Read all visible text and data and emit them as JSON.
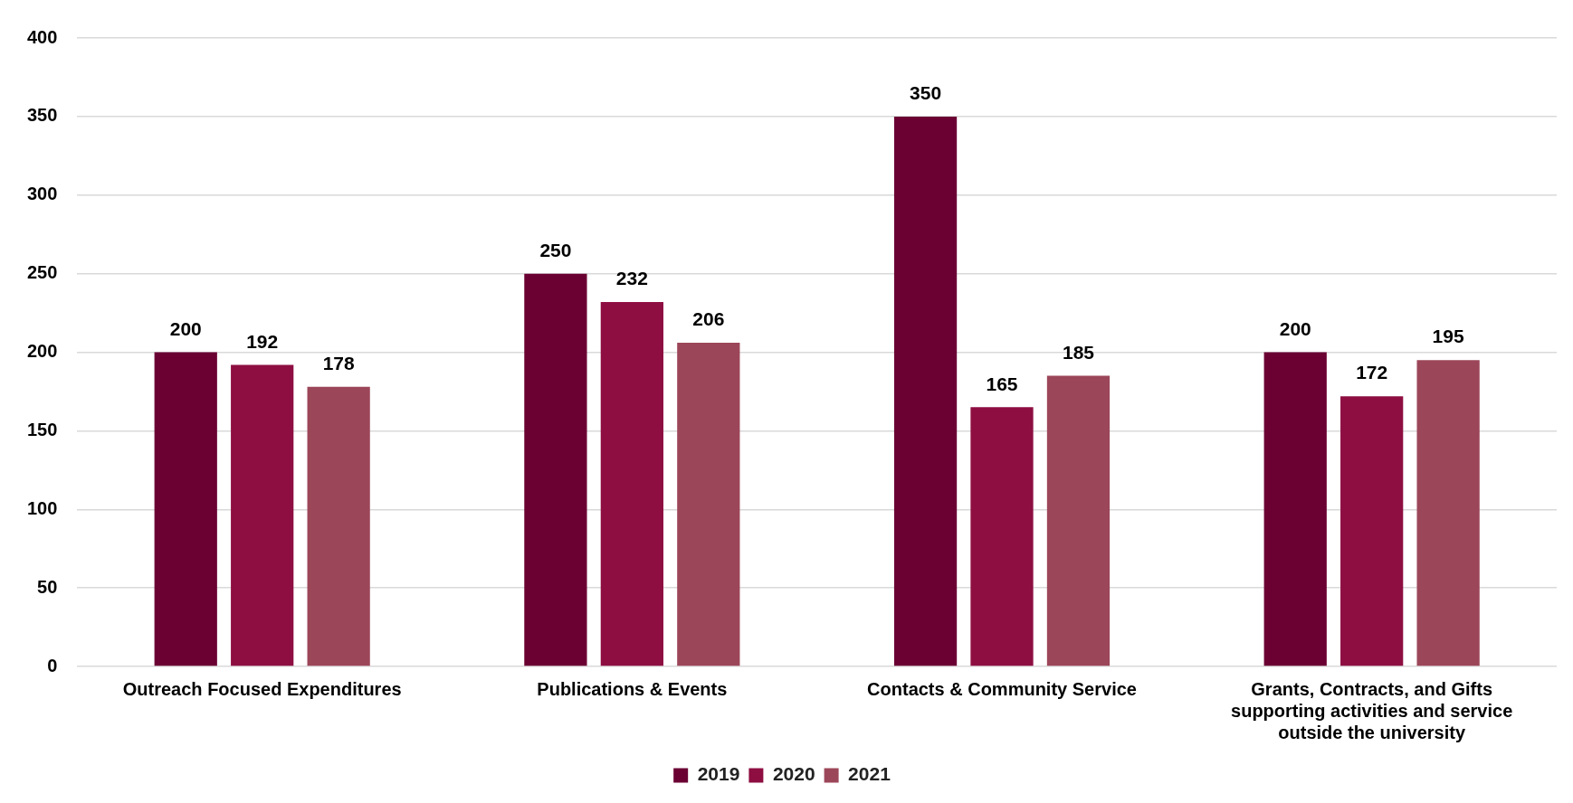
{
  "chart_data": {
    "type": "bar",
    "categories": [
      "Outreach Focused Expenditures",
      "Publications & Events",
      "Contacts & Community Service",
      "Grants, Contracts, and Gifts supporting activities and service outside the university"
    ],
    "series": [
      {
        "name": "2019",
        "color": "#6b0033",
        "values": [
          200,
          250,
          350,
          200
        ]
      },
      {
        "name": "2020",
        "color": "#8e0e42",
        "values": [
          192,
          232,
          165,
          172
        ]
      },
      {
        "name": "2021",
        "color": "#9c4659",
        "values": [
          178,
          206,
          185,
          195
        ]
      }
    ],
    "ylim": [
      0,
      400
    ],
    "yticks": [
      0,
      50,
      100,
      150,
      200,
      250,
      300,
      350,
      400
    ],
    "grid": "y",
    "legend": "bottom",
    "data_labels": true
  }
}
